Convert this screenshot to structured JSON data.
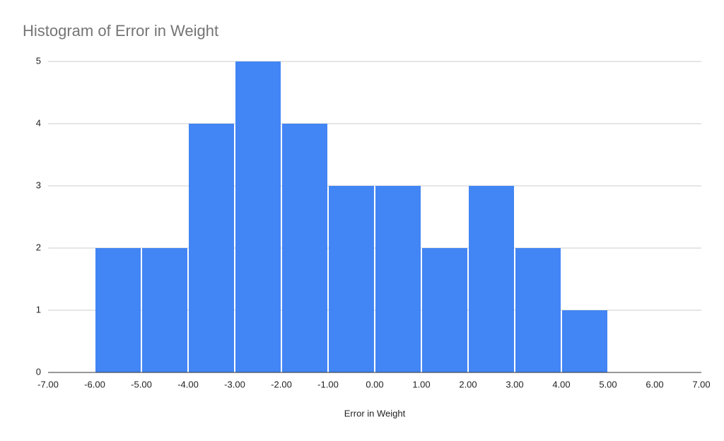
{
  "chart_data": {
    "type": "histogram",
    "title": "Histogram of Error in Weight",
    "x_label": "Error in Weight",
    "bins": [
      -6,
      -5,
      -4,
      -3,
      -2,
      -1,
      0,
      1,
      2,
      3,
      4,
      5
    ],
    "counts": [
      2,
      2,
      4,
      5,
      4,
      3,
      3,
      2,
      3,
      2,
      1
    ],
    "color": "#4285f4",
    "xlim": [
      -7,
      7
    ],
    "xticks": [
      {
        "value": -7,
        "label": "-7.00"
      },
      {
        "value": -6,
        "label": "-6.00"
      },
      {
        "value": -5,
        "label": "-5.00"
      },
      {
        "value": -4,
        "label": "-4.00"
      },
      {
        "value": -3,
        "label": "-3.00"
      },
      {
        "value": -2,
        "label": "-2.00"
      },
      {
        "value": -1,
        "label": "-1.00"
      },
      {
        "value": 0,
        "label": "0.00"
      },
      {
        "value": 1,
        "label": "1.00"
      },
      {
        "value": 2,
        "label": "2.00"
      },
      {
        "value": 3,
        "label": "3.00"
      },
      {
        "value": 4,
        "label": "4.00"
      },
      {
        "value": 5,
        "label": "5.00"
      },
      {
        "value": 6,
        "label": "6.00"
      },
      {
        "value": 7,
        "label": "7.00"
      }
    ],
    "ylim": [
      0,
      5
    ],
    "yticks": [
      0,
      1,
      2,
      3,
      4,
      5
    ],
    "grid": true
  }
}
